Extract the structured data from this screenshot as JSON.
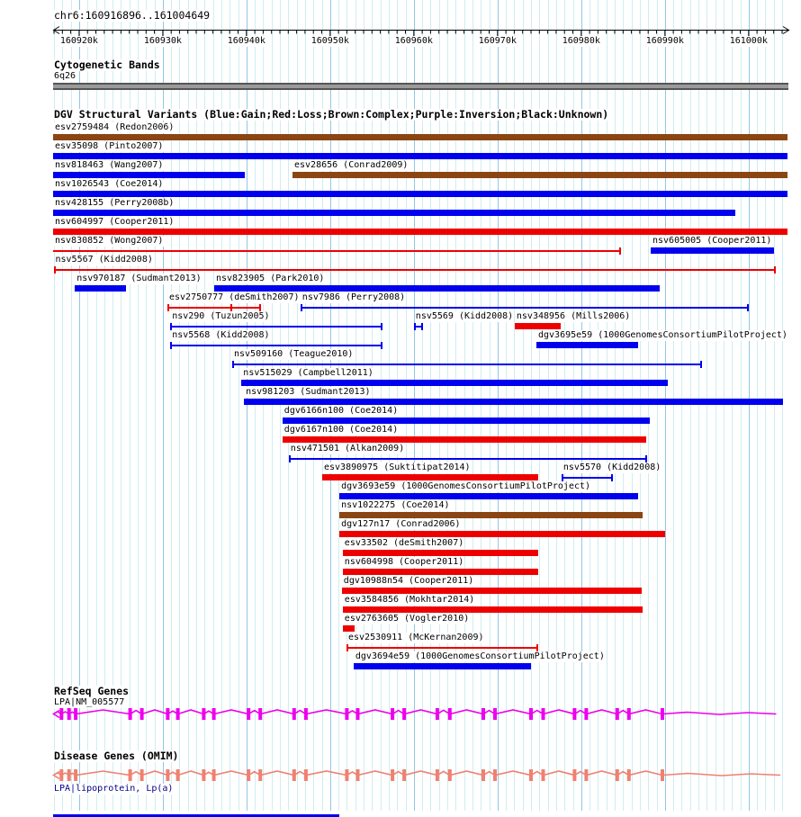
{
  "ruler": {
    "title": "chr6:160916896..161004649",
    "chromosome": "chr6"
  },
  "sections": {
    "cytobands": {
      "header": "Cytogenetic Bands",
      "band_label": "6q26"
    },
    "dgv": {
      "header": "DGV Structural Variants (Blue:Gain;Red:Loss;Brown:Complex;Purple:Inversion;Black:Unknown)"
    },
    "refseq": {
      "header": "RefSeq Genes",
      "gene_label": "LPA|NM_005577"
    },
    "omim": {
      "header": "Disease Genes (OMIM)",
      "gene_label": "LPA|lipoprotein, Lp(a)"
    }
  },
  "colors": {
    "variant_type": {
      "gain": "#0000EE",
      "loss": "#EE0000",
      "complex": "#8B4513",
      "inversion": "#800080",
      "unknown": "#000000"
    },
    "magenta": "#EE00EE",
    "salmon": "#F08070",
    "grid_minor": "#cdeef2",
    "grid_major": "#8fc8e6",
    "cytoband_fill": "#9a9a9a",
    "omim_label_text": "#00008B"
  },
  "chart_data": {
    "type": "genome-track",
    "axis": {
      "chromosome": "chr6",
      "start": 160916896,
      "end": 161004649,
      "minor_step": 1000,
      "major_step": 10000,
      "tick_labels": [
        {
          "bp": 160920000,
          "label": "160920k"
        },
        {
          "bp": 160930000,
          "label": "160930k"
        },
        {
          "bp": 160940000,
          "label": "160940k"
        },
        {
          "bp": 160950000,
          "label": "160950k"
        },
        {
          "bp": 160960000,
          "label": "160960k"
        },
        {
          "bp": 160970000,
          "label": "160970k"
        },
        {
          "bp": 160980000,
          "label": "160980k"
        },
        {
          "bp": 160990000,
          "label": "160990k"
        },
        {
          "bp": 161000000,
          "label": "161000k"
        }
      ]
    },
    "cytoband": {
      "name": "6q26",
      "start": 160916896,
      "end": 161004649
    },
    "variants": [
      {
        "row": 0,
        "id": "esv2759484",
        "study": "Redon2006",
        "type": "complex",
        "glyph": "box",
        "start": 160916896,
        "end": 161004649
      },
      {
        "row": 1,
        "id": "esv35098",
        "study": "Pinto2007",
        "type": "gain",
        "glyph": "box",
        "start": 160916896,
        "end": 161004649
      },
      {
        "row": 2,
        "id": "nsv818463",
        "study": "Wang2007",
        "type": "gain",
        "glyph": "box",
        "start": 160916896,
        "end": 160939800
      },
      {
        "row": 2,
        "id": "esv28656",
        "study": "Conrad2009",
        "type": "complex",
        "glyph": "box",
        "start": 160945500,
        "end": 161004649
      },
      {
        "row": 3,
        "id": "nsv1026543",
        "study": "Coe2014",
        "type": "gain",
        "glyph": "box",
        "start": 160916896,
        "end": 161004649
      },
      {
        "row": 4,
        "id": "nsv428155",
        "study": "Perry2008b",
        "type": "gain",
        "glyph": "box",
        "start": 160916896,
        "end": 160998400
      },
      {
        "row": 5,
        "id": "nsv604997",
        "study": "Cooper2011",
        "type": "loss",
        "glyph": "box",
        "start": 160916896,
        "end": 161004649
      },
      {
        "row": 6,
        "id": "nsv830852",
        "study": "Wong2007",
        "type": "loss",
        "glyph": "line",
        "ticks": "right",
        "start": 160916896,
        "end": 160984750
      },
      {
        "row": 6,
        "id": "nsv605005",
        "study": "Cooper2011",
        "type": "gain",
        "glyph": "box",
        "start": 160988300,
        "end": 161003000
      },
      {
        "row": 7,
        "id": "nsv5567",
        "study": "Kidd2008",
        "type": "loss",
        "glyph": "line",
        "ticks": "both",
        "start": 160916950,
        "end": 161003250
      },
      {
        "row": 8,
        "id": "nsv970187",
        "study": "Sudmant2013",
        "type": "gain",
        "glyph": "box",
        "start": 160919500,
        "end": 160925600
      },
      {
        "row": 8,
        "id": "nsv823905",
        "study": "Park2010",
        "type": "gain",
        "glyph": "box",
        "start": 160936150,
        "end": 160989400
      },
      {
        "row": 9,
        "id": "esv2750777",
        "study": "deSmith2007",
        "type": "loss",
        "glyph": "line",
        "ticks": "both",
        "mid_ticks": [
          160938100
        ],
        "start": 160930550,
        "end": 160941750
      },
      {
        "row": 9,
        "id": "nsv7986",
        "study": "Perry2008",
        "type": "gain",
        "glyph": "line",
        "ticks": "both",
        "start": 160946450,
        "end": 161000000
      },
      {
        "row": 10,
        "id": "nsv290",
        "study": "Tuzun2005",
        "type": "gain",
        "glyph": "line",
        "ticks": "both",
        "start": 160930900,
        "end": 160956250
      },
      {
        "row": 10,
        "id": "nsv5569",
        "study": "Kidd2008",
        "type": "gain",
        "glyph": "line",
        "ticks": "both",
        "start": 160960000,
        "end": 160961100
      },
      {
        "row": 10,
        "id": "nsv348956",
        "study": "Mills2006",
        "type": "loss",
        "glyph": "box",
        "start": 160972050,
        "end": 160977550
      },
      {
        "row": 11,
        "id": "nsv5568",
        "study": "Kidd2008",
        "type": "gain",
        "glyph": "line",
        "ticks": "both",
        "start": 160930900,
        "end": 160956250
      },
      {
        "row": 11,
        "id": "dgv3695e59",
        "study": "1000GenomesConsortiumPilotProject",
        "type": "gain",
        "glyph": "box",
        "start": 160974650,
        "end": 160986800
      },
      {
        "row": 12,
        "id": "nsv509160",
        "study": "Teague2010",
        "type": "gain",
        "glyph": "line",
        "ticks": "both",
        "start": 160938300,
        "end": 160994450
      },
      {
        "row": 13,
        "id": "nsv515029",
        "study": "Campbell2011",
        "type": "gain",
        "glyph": "box",
        "start": 160939400,
        "end": 160990350
      },
      {
        "row": 14,
        "id": "nsv981203",
        "study": "Sudmant2013",
        "type": "gain",
        "glyph": "box",
        "start": 160939700,
        "end": 161004100
      },
      {
        "row": 15,
        "id": "dgv6166n100",
        "study": "Coe2014",
        "type": "gain",
        "glyph": "box",
        "start": 160944300,
        "end": 160988200
      },
      {
        "row": 16,
        "id": "dgv6167n100",
        "study": "Coe2014",
        "type": "loss",
        "glyph": "box",
        "start": 160944300,
        "end": 160987750
      },
      {
        "row": 17,
        "id": "nsv471501",
        "study": "Alkan2009",
        "type": "gain",
        "glyph": "line",
        "ticks": "both",
        "start": 160945050,
        "end": 160987900
      },
      {
        "row": 18,
        "id": "esv3890975",
        "study": "Suktitipat2014",
        "type": "loss",
        "glyph": "box",
        "start": 160949050,
        "end": 160974850
      },
      {
        "row": 18,
        "id": "nsv5570",
        "study": "Kidd2008",
        "type": "gain",
        "glyph": "line",
        "ticks": "both",
        "start": 160977650,
        "end": 160983800
      },
      {
        "row": 19,
        "id": "dgv3693e59",
        "study": "1000GenomesConsortiumPilotProject",
        "type": "gain",
        "glyph": "box",
        "start": 160951100,
        "end": 160986800
      },
      {
        "row": 20,
        "id": "nsv1022275",
        "study": "Coe2014",
        "type": "complex",
        "glyph": "box",
        "start": 160951100,
        "end": 160987350
      },
      {
        "row": 21,
        "id": "dgv127n17",
        "study": "Conrad2006",
        "type": "loss",
        "glyph": "box",
        "start": 160951100,
        "end": 160990000
      },
      {
        "row": 22,
        "id": "esv33502",
        "study": "deSmith2007",
        "type": "loss",
        "glyph": "box",
        "start": 160951500,
        "end": 160974850
      },
      {
        "row": 23,
        "id": "nsv604998",
        "study": "Cooper2011",
        "type": "loss",
        "glyph": "box",
        "start": 160951500,
        "end": 160974850
      },
      {
        "row": 24,
        "id": "dgv10988n54",
        "study": "Cooper2011",
        "type": "loss",
        "glyph": "box",
        "start": 160951400,
        "end": 160987250
      },
      {
        "row": 25,
        "id": "esv3584856",
        "study": "Mokhtar2014",
        "type": "loss",
        "glyph": "box",
        "start": 160951500,
        "end": 160987350
      },
      {
        "row": 26,
        "id": "esv2763605",
        "study": "Vogler2010",
        "type": "loss",
        "glyph": "box",
        "start": 160951500,
        "end": 160952900
      },
      {
        "row": 27,
        "id": "esv2530911",
        "study": "McKernan2009",
        "type": "loss",
        "glyph": "line",
        "ticks": "both",
        "start": 160951950,
        "end": 160974850
      },
      {
        "row": 28,
        "id": "dgv3694e59",
        "study": "1000GenomesConsortiumPilotProject",
        "type": "gain",
        "glyph": "box",
        "start": 160952800,
        "end": 160974000
      }
    ],
    "gene_exons_bp": [
      160917900,
      160918800,
      160919600,
      160926100,
      160927500,
      160930600,
      160931800,
      160934900,
      160936100,
      160940250,
      160941650,
      160945700,
      160947100,
      160952000,
      160953300,
      160957450,
      160958850,
      160962800,
      160964300,
      160968300,
      160969700,
      160974000,
      160975450,
      160979200,
      160980600,
      160984300,
      160985700,
      160989700
    ],
    "genes": [
      {
        "track": "refseq",
        "label": "LPA|NM_005577",
        "color_key": "magenta",
        "strand": "-",
        "tail_end": 161003300
      },
      {
        "track": "omim",
        "label": "LPA|lipoprotein, Lp(a)",
        "color_key": "salmon",
        "strand": "-",
        "tail_end": 161003800
      }
    ],
    "partial_bottom_bar": {
      "type": "gain",
      "start": 160916896,
      "end": 160951100
    }
  }
}
